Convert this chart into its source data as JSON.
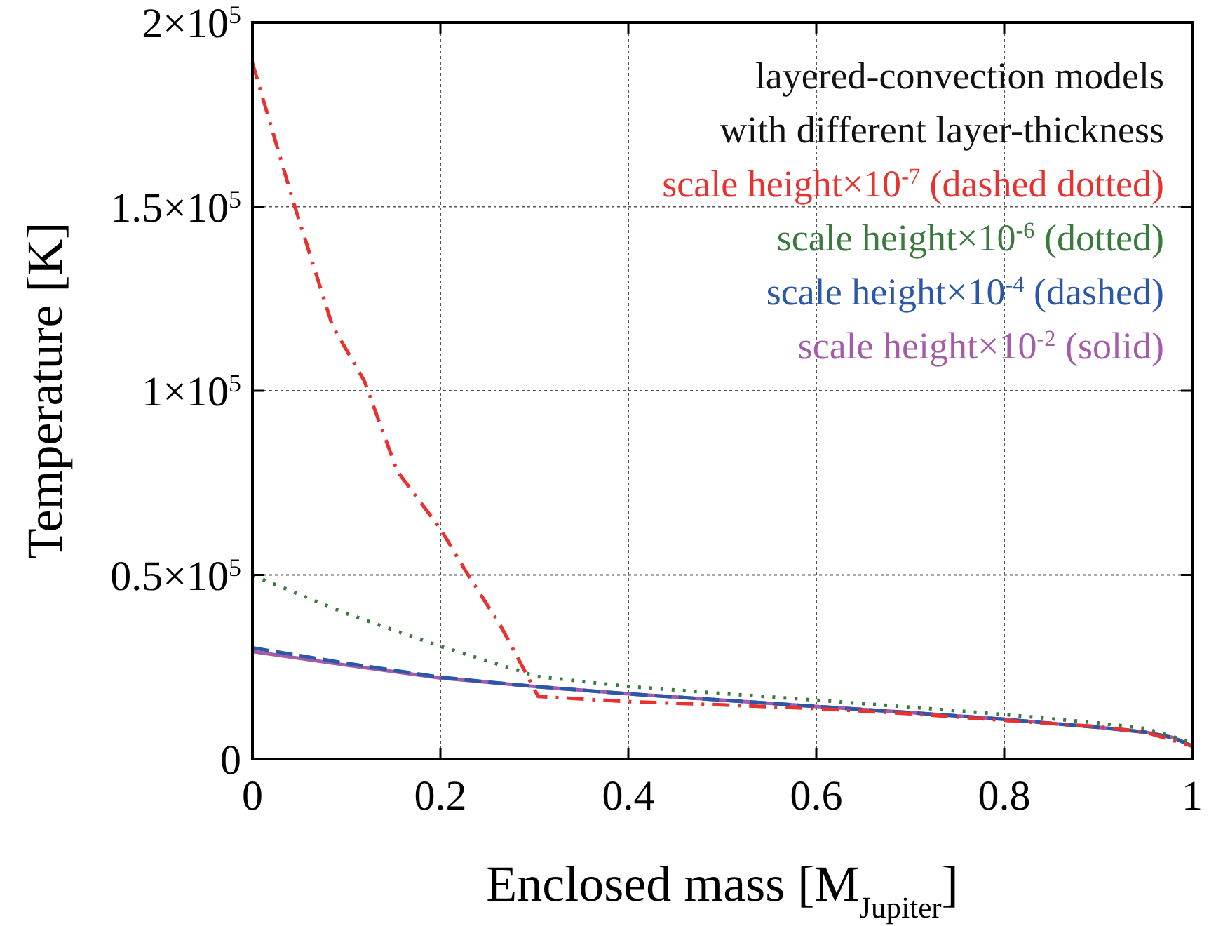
{
  "chart_data": {
    "type": "line",
    "xlabel": "Enclosed mass [M$_{Jupiter}$]",
    "ylabel": "Temperature [K]",
    "annotations": [
      "layered-convection models",
      "with different layer-thickness"
    ],
    "xlim": [
      0,
      1
    ],
    "xticks": [
      0,
      0.2,
      0.4,
      0.6,
      0.8,
      1
    ],
    "ylim": [
      0,
      200000
    ],
    "yticks": [
      0,
      {
        "value": 50000,
        "label": "0.5×10$^{5}$"
      },
      {
        "value": 100000,
        "label": "1×10$^{5}$"
      },
      {
        "value": 150000,
        "label": "1.5×10$^{5}$"
      },
      {
        "value": 200000,
        "label": "2×10$^{5}$"
      }
    ],
    "grid": true,
    "legend": "top right",
    "marker": "none",
    "series": [
      {
        "name": "scale height×10$^{-7}$ (dashed dotted)",
        "color": "#e8322f",
        "line_style": "dashdot",
        "x": [
          0,
          0.043,
          0.085,
          0.119,
          0.154,
          0.2,
          0.227,
          0.264,
          0.29,
          0.304,
          0.4,
          0.5,
          0.6,
          0.7,
          0.8,
          0.9,
          0.95,
          1
        ],
        "values": [
          189000,
          151700,
          117700,
          102700,
          78200,
          62500,
          51000,
          36200,
          23800,
          17000,
          15600,
          14700,
          13700,
          12300,
          10500,
          8800,
          7300,
          3500
        ]
      },
      {
        "name": "scale height×10$^{-6}$ (dotted)",
        "color": "#3a7a3e",
        "line_style": "dotted",
        "x": [
          0,
          0.1,
          0.2,
          0.29,
          0.3,
          0.4,
          0.5,
          0.6,
          0.7,
          0.8,
          0.9,
          0.95,
          1
        ],
        "values": [
          49900,
          39500,
          30600,
          23500,
          22500,
          19700,
          17800,
          16000,
          14100,
          12100,
          9800,
          8300,
          4500
        ]
      },
      {
        "name": "scale height×10$^{-4}$ (dashed)",
        "color": "#2a57a8",
        "line_style": "dashed",
        "x": [
          0,
          0.1,
          0.2,
          0.3,
          0.4,
          0.5,
          0.6,
          0.7,
          0.8,
          0.9,
          0.95,
          0.98,
          1
        ],
        "values": [
          30200,
          26000,
          22200,
          19700,
          17700,
          16000,
          14300,
          12600,
          10800,
          8600,
          7300,
          5800,
          3500
        ]
      },
      {
        "name": "scale height×10$^{-2}$ (solid)",
        "color": "#a45ca8",
        "line_style": "solid",
        "x": [
          0,
          0.1,
          0.2,
          0.3,
          0.4,
          0.5,
          0.6,
          0.7,
          0.8,
          0.9,
          0.95,
          0.98,
          1
        ],
        "values": [
          29200,
          25500,
          22000,
          19700,
          17700,
          16000,
          14300,
          12600,
          10800,
          8600,
          7300,
          5800,
          3500
        ]
      }
    ]
  }
}
